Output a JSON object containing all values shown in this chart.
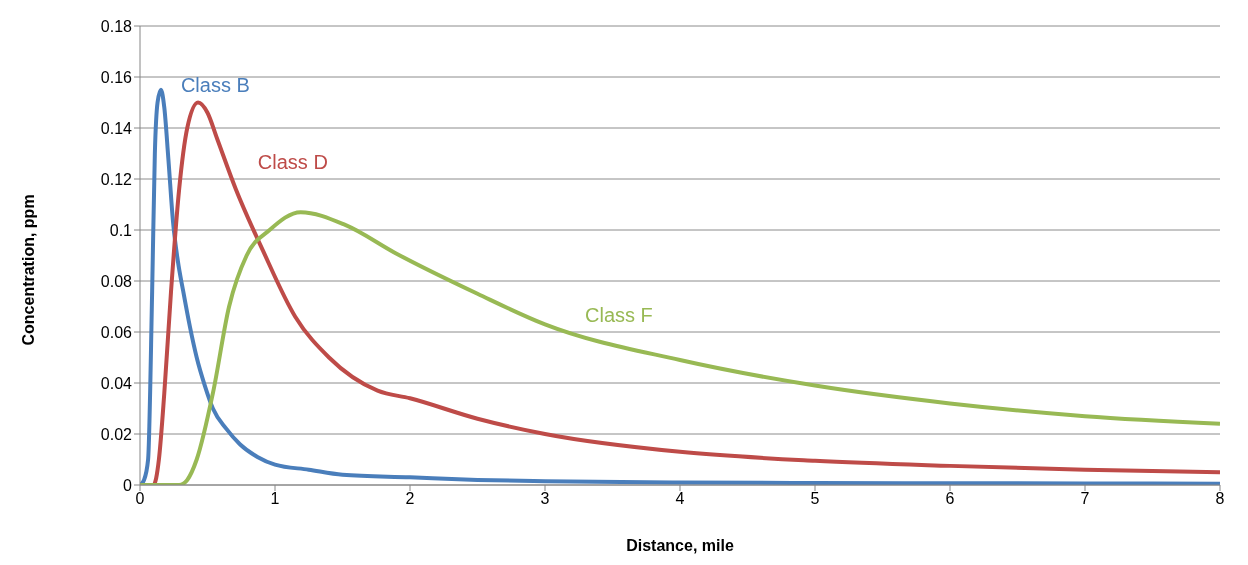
{
  "chart_data": {
    "type": "line",
    "xlabel": "Distance, mile",
    "ylabel": "Concentration, ppm",
    "xlim": [
      0,
      8
    ],
    "xticks": [
      0,
      1,
      2,
      3,
      4,
      5,
      6,
      7,
      8
    ],
    "ylim": [
      0,
      0.18
    ],
    "yticks": [
      0,
      0.02,
      0.04,
      0.06,
      0.08,
      0.1,
      0.12,
      0.14,
      0.16,
      0.18
    ],
    "grid": "y",
    "legend": false,
    "marker": "none",
    "line_style": "solid",
    "series": [
      {
        "name": "Class B",
        "color": "#4a7ebb",
        "x": [
          0,
          0.03,
          0.06,
          0.09,
          0.11,
          0.13,
          0.155,
          0.18,
          0.21,
          0.245,
          0.28,
          0.32,
          0.37,
          0.42,
          0.48,
          0.54,
          0.64,
          0.74,
          0.87,
          1,
          1.25,
          1.5,
          2,
          2.5,
          3,
          4,
          5,
          6,
          7,
          8
        ],
        "values": [
          0,
          0.002,
          0.01,
          0.076,
          0.13,
          0.15,
          0.155,
          0.148,
          0.128,
          0.103,
          0.088,
          0.076,
          0.062,
          0.05,
          0.039,
          0.03,
          0.022,
          0.016,
          0.011,
          0.008,
          0.006,
          0.004,
          0.003,
          0.002,
          0.0015,
          0.001,
          0.0008,
          0.0007,
          0.0006,
          0.0005
        ]
      },
      {
        "name": "Class D",
        "color": "#be4b48",
        "x": [
          0,
          0.1,
          0.14,
          0.18,
          0.23,
          0.29,
          0.35,
          0.43,
          0.5,
          0.57,
          0.71,
          0.91,
          1.15,
          1.4,
          1.76,
          2,
          2.5,
          3,
          4,
          5,
          6,
          7,
          8
        ],
        "values": [
          0,
          0,
          0.01,
          0.036,
          0.076,
          0.116,
          0.14,
          0.15,
          0.146,
          0.136,
          0.116,
          0.092,
          0.066,
          0.05,
          0.037,
          0.034,
          0.026,
          0.02,
          0.013,
          0.0095,
          0.0075,
          0.006,
          0.005
        ]
      },
      {
        "name": "Class F",
        "color": "#98b954",
        "x": [
          0,
          0.29,
          0.35,
          0.42,
          0.54,
          0.66,
          0.79,
          0.96,
          1.19,
          1.52,
          1.89,
          2.5,
          3,
          4,
          5,
          6,
          7,
          8
        ],
        "values": [
          0,
          0,
          0.002,
          0.01,
          0.036,
          0.07,
          0.09,
          0.1,
          0.107,
          0.102,
          0.091,
          0.075,
          0.063,
          0.049,
          0.039,
          0.032,
          0.027,
          0.024
        ]
      }
    ]
  }
}
